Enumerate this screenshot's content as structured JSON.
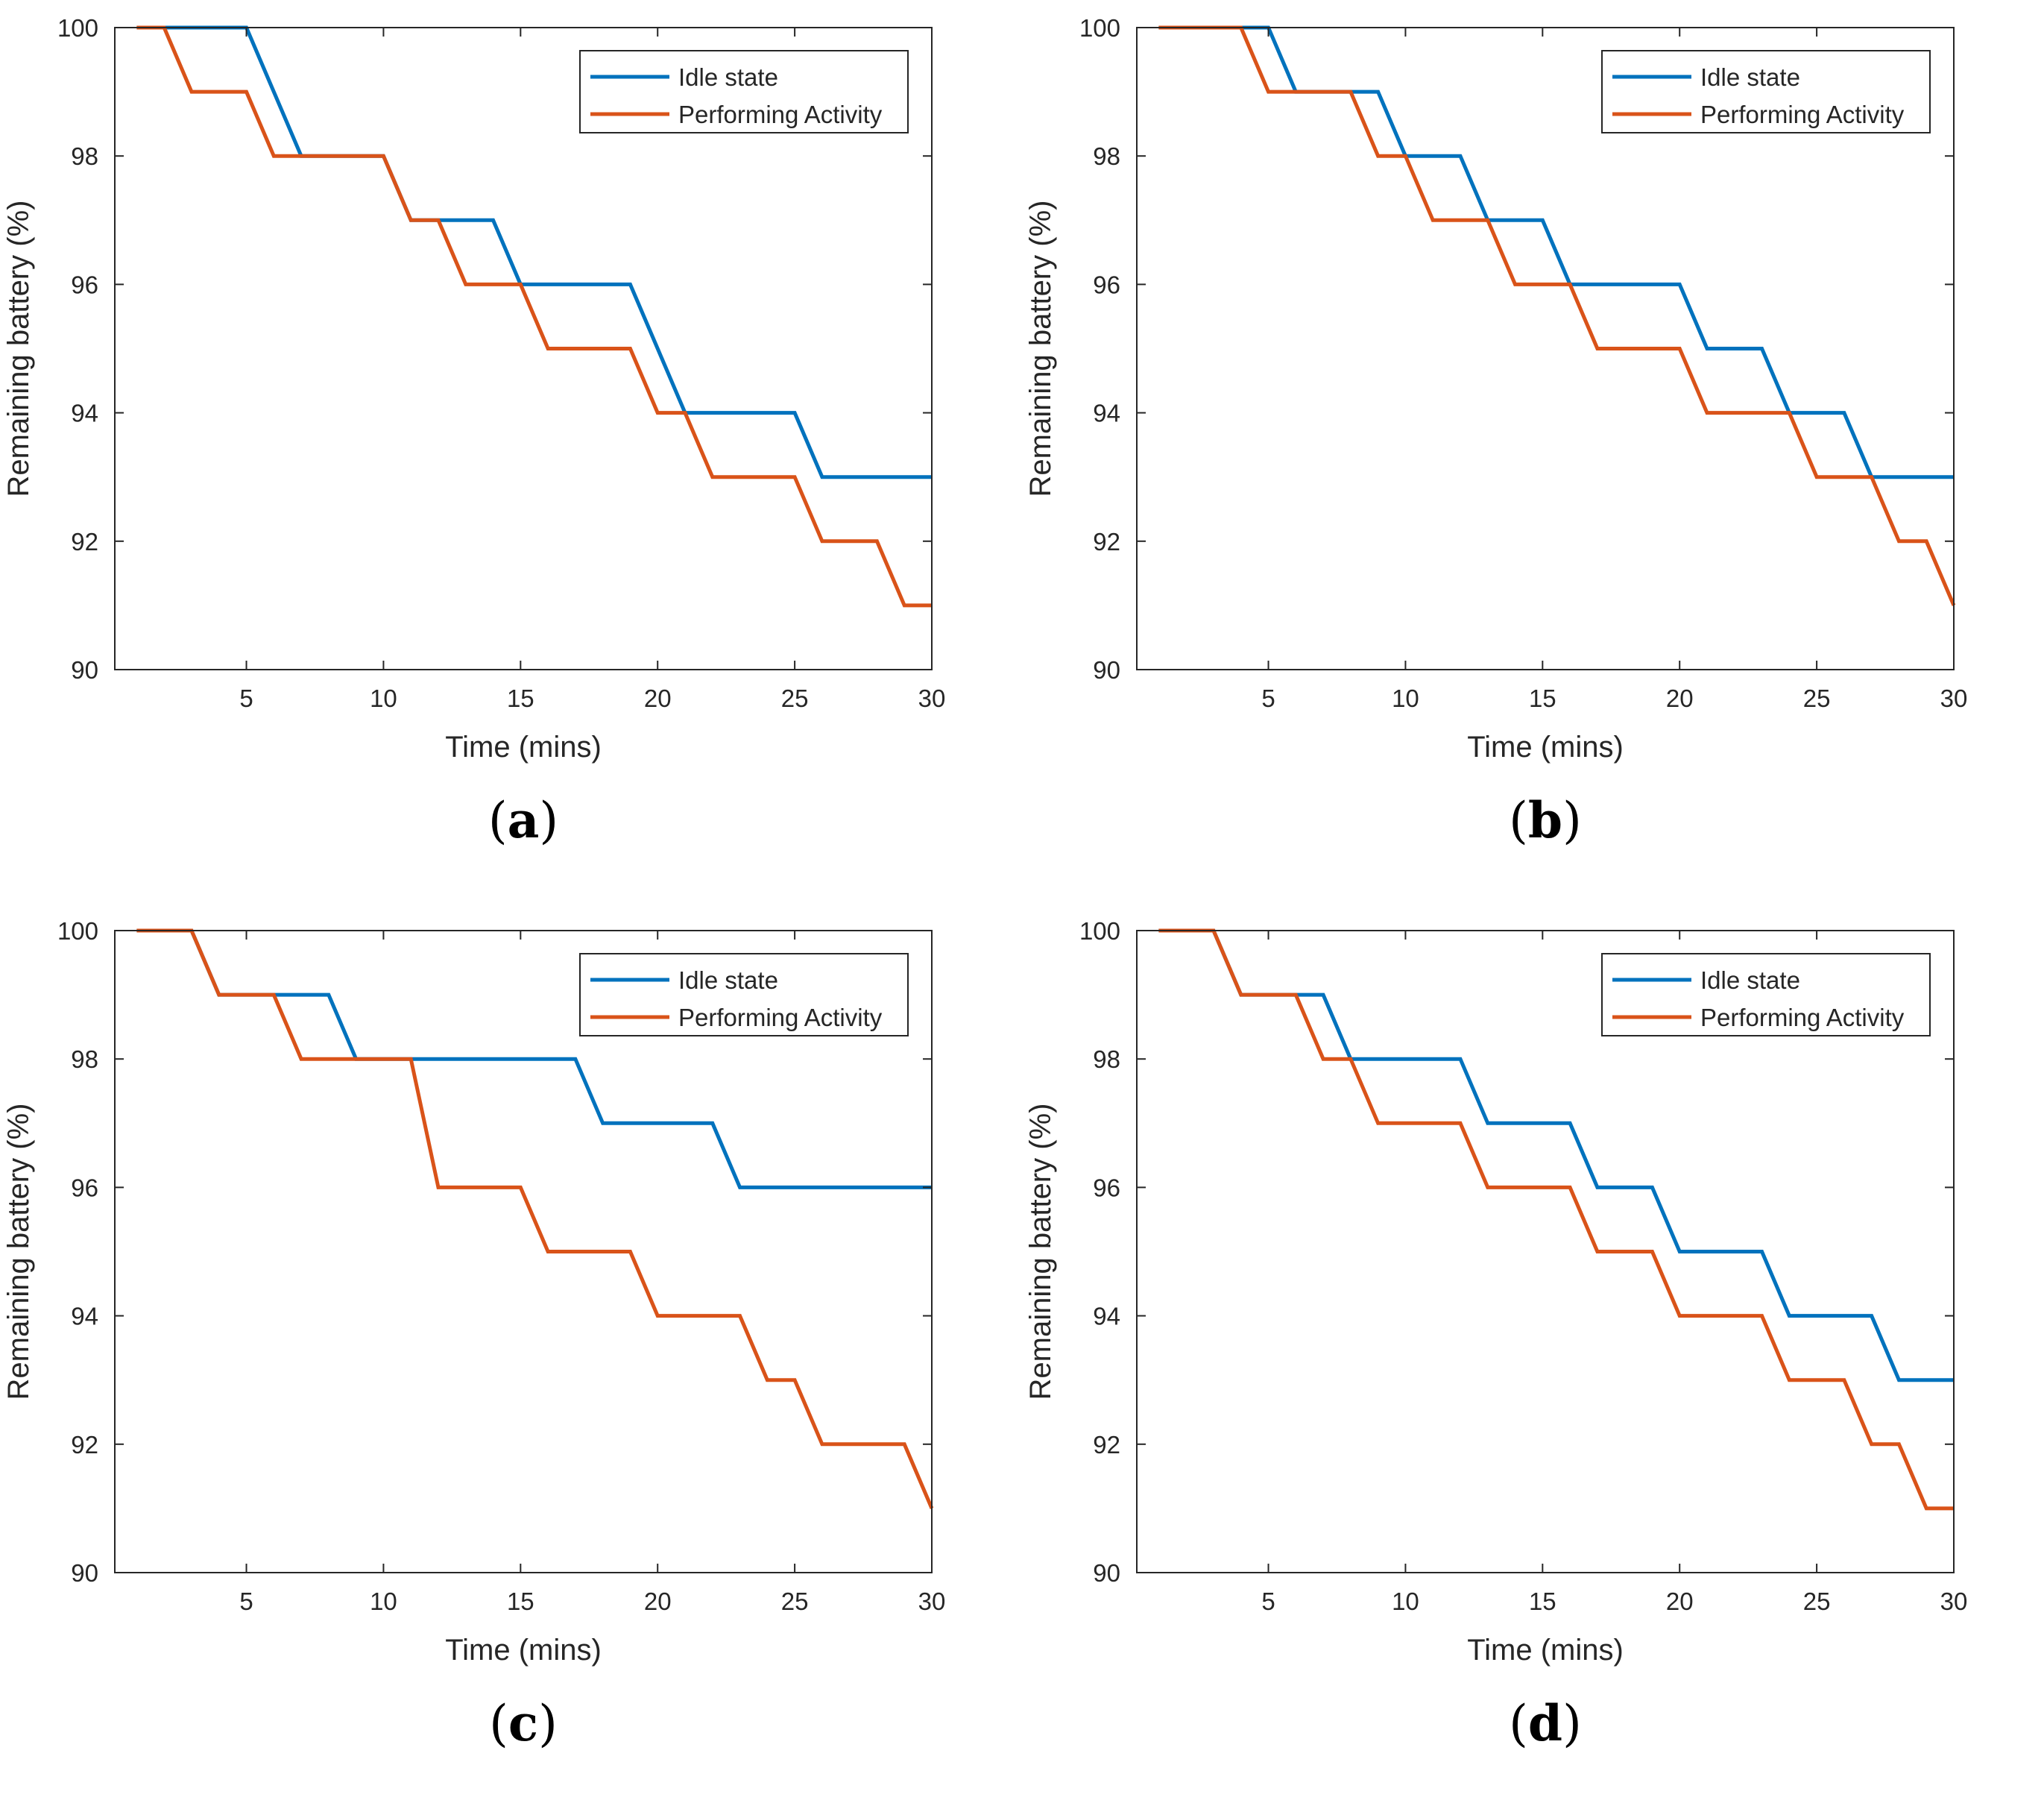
{
  "panels": [
    {
      "caption": "(a)",
      "caption_letter": "a",
      "chart_data": {
        "type": "line",
        "title": "",
        "xlabel": "Time (mins)",
        "ylabel": "Remaining battery (%)",
        "xlim": [
          0.2,
          30
        ],
        "ylim": [
          90,
          100
        ],
        "xticks": [
          5,
          10,
          15,
          20,
          25,
          30
        ],
        "yticks": [
          90,
          92,
          94,
          96,
          98,
          100
        ],
        "legend_position": "top-right",
        "series": [
          {
            "name": "Idle state",
            "color": "#0072bd",
            "x": [
              1,
              2,
              3,
              4,
              5,
              6,
              7,
              8,
              9,
              10,
              11,
              12,
              13,
              14,
              15,
              16,
              17,
              18,
              19,
              20,
              21,
              22,
              23,
              24,
              25,
              26,
              27,
              28,
              29,
              30
            ],
            "y": [
              100,
              100,
              100,
              100,
              100,
              99,
              98,
              98,
              98,
              98,
              97,
              97,
              97,
              97,
              96,
              96,
              96,
              96,
              96,
              95,
              94,
              94,
              94,
              94,
              94,
              93,
              93,
              93,
              93,
              93
            ]
          },
          {
            "name": "Performing Activity",
            "color": "#d95319",
            "x": [
              1,
              2,
              3,
              4,
              5,
              6,
              7,
              8,
              9,
              10,
              11,
              12,
              13,
              14,
              15,
              16,
              17,
              18,
              19,
              20,
              21,
              22,
              23,
              24,
              25,
              26,
              27,
              28,
              29,
              30
            ],
            "y": [
              100,
              100,
              99,
              99,
              99,
              98,
              98,
              98,
              98,
              98,
              97,
              97,
              96,
              96,
              96,
              95,
              95,
              95,
              95,
              94,
              94,
              93,
              93,
              93,
              93,
              92,
              92,
              92,
              91,
              91
            ]
          }
        ]
      }
    },
    {
      "caption": "(b)",
      "caption_letter": "b",
      "chart_data": {
        "type": "line",
        "title": "",
        "xlabel": "Time (mins)",
        "ylabel": "Remaining battery (%)",
        "xlim": [
          0.2,
          30
        ],
        "ylim": [
          90,
          100
        ],
        "xticks": [
          5,
          10,
          15,
          20,
          25,
          30
        ],
        "yticks": [
          90,
          92,
          94,
          96,
          98,
          100
        ],
        "legend_position": "top-right",
        "series": [
          {
            "name": "Idle state",
            "color": "#0072bd",
            "x": [
              1,
              2,
              3,
              4,
              5,
              6,
              7,
              8,
              9,
              10,
              11,
              12,
              13,
              14,
              15,
              16,
              17,
              18,
              19,
              20,
              21,
              22,
              23,
              24,
              25,
              26,
              27,
              28,
              29,
              30
            ],
            "y": [
              100,
              100,
              100,
              100,
              100,
              99,
              99,
              99,
              99,
              98,
              98,
              98,
              97,
              97,
              97,
              96,
              96,
              96,
              96,
              96,
              95,
              95,
              95,
              94,
              94,
              94,
              93,
              93,
              93,
              93
            ]
          },
          {
            "name": "Performing Activity",
            "color": "#d95319",
            "x": [
              1,
              2,
              3,
              4,
              5,
              6,
              7,
              8,
              9,
              10,
              11,
              12,
              13,
              14,
              15,
              16,
              17,
              18,
              19,
              20,
              21,
              22,
              23,
              24,
              25,
              26,
              27,
              28,
              29,
              30
            ],
            "y": [
              100,
              100,
              100,
              100,
              99,
              99,
              99,
              99,
              98,
              98,
              97,
              97,
              97,
              96,
              96,
              96,
              95,
              95,
              95,
              95,
              94,
              94,
              94,
              94,
              93,
              93,
              93,
              92,
              92,
              91
            ]
          }
        ]
      }
    },
    {
      "caption": "(c)",
      "caption_letter": "c",
      "chart_data": {
        "type": "line",
        "title": "",
        "xlabel": "Time (mins)",
        "ylabel": "Remaining battery (%)",
        "xlim": [
          0.2,
          30
        ],
        "ylim": [
          90,
          100
        ],
        "xticks": [
          5,
          10,
          15,
          20,
          25,
          30
        ],
        "yticks": [
          90,
          92,
          94,
          96,
          98,
          100
        ],
        "legend_position": "top-right",
        "series": [
          {
            "name": "Idle state",
            "color": "#0072bd",
            "x": [
              1,
              2,
              3,
              4,
              5,
              6,
              7,
              8,
              9,
              10,
              11,
              12,
              13,
              14,
              15,
              16,
              17,
              18,
              19,
              20,
              21,
              22,
              23,
              24,
              25,
              26,
              27,
              28,
              29,
              30
            ],
            "y": [
              100,
              100,
              100,
              99,
              99,
              99,
              99,
              99,
              98,
              98,
              98,
              98,
              98,
              98,
              98,
              98,
              98,
              97,
              97,
              97,
              97,
              97,
              96,
              96,
              96,
              96,
              96,
              96,
              96,
              96
            ]
          },
          {
            "name": "Performing Activity",
            "color": "#d95319",
            "x": [
              1,
              2,
              3,
              4,
              5,
              6,
              7,
              8,
              9,
              10,
              11,
              12,
              13,
              14,
              15,
              16,
              17,
              18,
              19,
              20,
              21,
              22,
              23,
              24,
              25,
              26,
              27,
              28,
              29,
              30
            ],
            "y": [
              100,
              100,
              100,
              99,
              99,
              99,
              98,
              98,
              98,
              98,
              98,
              96,
              96,
              96,
              96,
              95,
              95,
              95,
              95,
              94,
              94,
              94,
              94,
              93,
              93,
              92,
              92,
              92,
              92,
              91
            ]
          }
        ]
      }
    },
    {
      "caption": "(d)",
      "caption_letter": "d",
      "chart_data": {
        "type": "line",
        "title": "",
        "xlabel": "Time (mins)",
        "ylabel": "Remaining battery (%)",
        "xlim": [
          0.2,
          30
        ],
        "ylim": [
          90,
          100
        ],
        "xticks": [
          5,
          10,
          15,
          20,
          25,
          30
        ],
        "yticks": [
          90,
          92,
          94,
          96,
          98,
          100
        ],
        "legend_position": "top-right",
        "series": [
          {
            "name": "Idle state",
            "color": "#0072bd",
            "x": [
              1,
              2,
              3,
              4,
              5,
              6,
              7,
              8,
              9,
              10,
              11,
              12,
              13,
              14,
              15,
              16,
              17,
              18,
              19,
              20,
              21,
              22,
              23,
              24,
              25,
              26,
              27,
              28,
              29,
              30
            ],
            "y": [
              100,
              100,
              100,
              99,
              99,
              99,
              99,
              98,
              98,
              98,
              98,
              98,
              97,
              97,
              97,
              97,
              96,
              96,
              96,
              95,
              95,
              95,
              95,
              94,
              94,
              94,
              94,
              93,
              93,
              93
            ]
          },
          {
            "name": "Performing Activity",
            "color": "#d95319",
            "x": [
              1,
              2,
              3,
              4,
              5,
              6,
              7,
              8,
              9,
              10,
              11,
              12,
              13,
              14,
              15,
              16,
              17,
              18,
              19,
              20,
              21,
              22,
              23,
              24,
              25,
              26,
              27,
              28,
              29,
              30
            ],
            "y": [
              100,
              100,
              100,
              99,
              99,
              99,
              98,
              98,
              97,
              97,
              97,
              97,
              96,
              96,
              96,
              96,
              95,
              95,
              95,
              94,
              94,
              94,
              94,
              93,
              93,
              93,
              92,
              92,
              91,
              91
            ]
          }
        ]
      }
    }
  ]
}
